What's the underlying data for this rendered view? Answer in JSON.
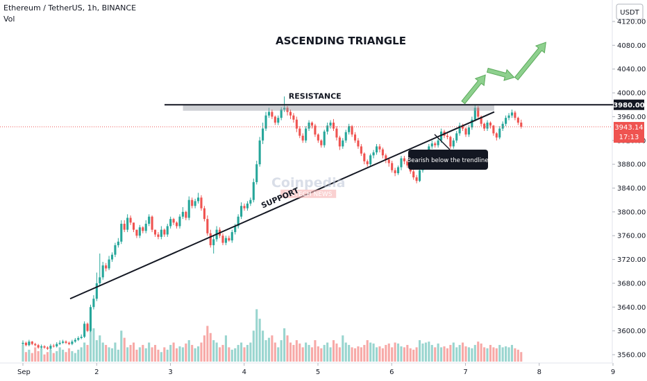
{
  "header": {
    "symbol_line": "Ethereum / TetherUS, 1h, BINANCE",
    "vol_label": "Vol"
  },
  "axis": {
    "currency_badge": "USDT"
  },
  "chart_data": {
    "type": "candlestick",
    "title": "ASCENDING TRIANGLE",
    "ylim": [
      3555,
      4135
    ],
    "y_ticks": [
      3560,
      3600,
      3640,
      3680,
      3720,
      3760,
      3800,
      3840,
      3880,
      3920,
      3960,
      4000,
      4040,
      4080,
      4120
    ],
    "x_ticks": [
      "Sep",
      "2",
      "3",
      "4",
      "5",
      "6",
      "7",
      "8",
      "9"
    ],
    "x_day_range": [
      1.0,
      9.0
    ],
    "price_badges": {
      "resistance_level": "3980.00",
      "last_price": "3943.14",
      "countdown": "17:13"
    },
    "annotations": {
      "resistance_label": "RESISTANCE",
      "support_label": "SUPPORT",
      "callout": "Bearish below the trendline",
      "watermark_main": "Coinpedia",
      "watermark_sub": "FINTECH NEWS"
    },
    "resistance": {
      "price": 3980,
      "x_start": 2.92,
      "x_end": 9.0
    },
    "resistance_zone": {
      "top": 3980,
      "bottom": 3970,
      "x_start": 3.17,
      "x_end": 7.39
    },
    "support_line": {
      "start": {
        "x": 1.64,
        "y": 3654
      },
      "end": {
        "x": 7.39,
        "y": 3968
      }
    },
    "projection_arrows": [
      {
        "from": {
          "x": 6.97,
          "y": 3984
        },
        "to": {
          "x": 7.27,
          "y": 4030
        }
      },
      {
        "from": {
          "x": 7.3,
          "y": 4038
        },
        "to": {
          "x": 7.66,
          "y": 4026
        }
      },
      {
        "from": {
          "x": 7.69,
          "y": 4024
        },
        "to": {
          "x": 8.09,
          "y": 4085
        }
      }
    ],
    "candle_colors": {
      "up": "#26a69a",
      "down": "#ef5350",
      "vol_up": "#99d5cf",
      "vol_down": "#f7a9a7"
    },
    "candles": {
      "start_x": 1.0,
      "step": 0.0417,
      "vol_scale": [
        0,
        160
      ],
      "open": [
        3578,
        3580,
        3576,
        3582,
        3578,
        3576,
        3572,
        3574,
        3572,
        3570,
        3575,
        3574,
        3578,
        3580,
        3582,
        3580,
        3578,
        3582,
        3585,
        3588,
        3590,
        3612,
        3600,
        3640,
        3654,
        3680,
        3690,
        3710,
        3705,
        3720,
        3728,
        3744,
        3750,
        3780,
        3770,
        3790,
        3782,
        3770,
        3760,
        3774,
        3768,
        3780,
        3792,
        3770,
        3762,
        3758,
        3770,
        3762,
        3776,
        3788,
        3782,
        3776,
        3792,
        3800,
        3790,
        3820,
        3810,
        3818,
        3824,
        3806,
        3788,
        3764,
        3744,
        3754,
        3770,
        3760,
        3748,
        3756,
        3752,
        3766,
        3776,
        3792,
        3810,
        3806,
        3814,
        3820,
        3850,
        3880,
        3920,
        3940,
        3962,
        3968,
        3960,
        3950,
        3958,
        3972,
        3975,
        3968,
        3962,
        3955,
        3940,
        3928,
        3920,
        3940,
        3950,
        3945,
        3930,
        3920,
        3912,
        3935,
        3945,
        3950,
        3940,
        3925,
        3910,
        3920,
        3934,
        3944,
        3930,
        3920,
        3910,
        3898,
        3885,
        3880,
        3895,
        3900,
        3910,
        3905,
        3895,
        3888,
        3882,
        3870,
        3865,
        3875,
        3890,
        3885,
        3878,
        3868,
        3858,
        3852,
        3870,
        3882,
        3895,
        3910,
        3915,
        3912,
        3920,
        3935,
        3928,
        3926,
        3910,
        3920,
        3932,
        3945,
        3940,
        3930,
        3942,
        3955,
        3975,
        3960,
        3948,
        3940,
        3950,
        3945,
        3932,
        3925,
        3940,
        3948,
        3958,
        3962,
        3967,
        3958,
        3950
      ],
      "close": [
        3580,
        3576,
        3582,
        3578,
        3576,
        3572,
        3574,
        3572,
        3570,
        3575,
        3574,
        3578,
        3580,
        3582,
        3580,
        3578,
        3582,
        3585,
        3588,
        3590,
        3612,
        3600,
        3640,
        3654,
        3680,
        3690,
        3710,
        3705,
        3720,
        3728,
        3744,
        3750,
        3780,
        3770,
        3790,
        3782,
        3770,
        3760,
        3774,
        3768,
        3780,
        3792,
        3770,
        3762,
        3758,
        3770,
        3762,
        3776,
        3788,
        3782,
        3776,
        3792,
        3800,
        3790,
        3820,
        3810,
        3818,
        3824,
        3806,
        3788,
        3764,
        3744,
        3754,
        3770,
        3760,
        3748,
        3756,
        3752,
        3766,
        3776,
        3792,
        3810,
        3806,
        3814,
        3820,
        3850,
        3880,
        3920,
        3940,
        3962,
        3968,
        3960,
        3950,
        3958,
        3972,
        3975,
        3968,
        3962,
        3955,
        3940,
        3928,
        3920,
        3940,
        3950,
        3945,
        3930,
        3920,
        3912,
        3935,
        3945,
        3950,
        3940,
        3925,
        3910,
        3920,
        3934,
        3944,
        3930,
        3920,
        3910,
        3898,
        3885,
        3880,
        3895,
        3900,
        3910,
        3905,
        3895,
        3888,
        3882,
        3870,
        3865,
        3875,
        3890,
        3885,
        3878,
        3868,
        3858,
        3852,
        3870,
        3882,
        3895,
        3910,
        3915,
        3912,
        3920,
        3935,
        3928,
        3926,
        3910,
        3920,
        3932,
        3945,
        3940,
        3930,
        3942,
        3955,
        3975,
        3960,
        3948,
        3940,
        3950,
        3945,
        3932,
        3925,
        3940,
        3948,
        3958,
        3962,
        3967,
        3958,
        3950,
        3943
      ],
      "high": [
        3584,
        3582,
        3585,
        3583,
        3580,
        3578,
        3577,
        3576,
        3574,
        3578,
        3578,
        3581,
        3584,
        3585,
        3584,
        3582,
        3585,
        3588,
        3591,
        3594,
        3616,
        3614,
        3644,
        3660,
        3698,
        3730,
        3716,
        3714,
        3726,
        3732,
        3748,
        3756,
        3786,
        3786,
        3796,
        3794,
        3778,
        3770,
        3778,
        3776,
        3786,
        3796,
        3794,
        3770,
        3766,
        3776,
        3772,
        3780,
        3792,
        3790,
        3784,
        3796,
        3808,
        3802,
        3826,
        3824,
        3822,
        3832,
        3828,
        3810,
        3794,
        3770,
        3760,
        3776,
        3774,
        3764,
        3760,
        3760,
        3770,
        3780,
        3796,
        3816,
        3814,
        3818,
        3824,
        3856,
        3886,
        3926,
        3950,
        3968,
        3975,
        3972,
        3962,
        3962,
        3976,
        3994,
        3978,
        3972,
        3966,
        3960,
        3944,
        3932,
        3944,
        3954,
        3952,
        3948,
        3932,
        3922,
        3938,
        3950,
        3954,
        3956,
        3944,
        3928,
        3924,
        3938,
        3948,
        3946,
        3934,
        3924,
        3914,
        3900,
        3888,
        3898,
        3904,
        3914,
        3914,
        3908,
        3898,
        3890,
        3886,
        3874,
        3878,
        3894,
        3894,
        3888,
        3880,
        3872,
        3862,
        3874,
        3886,
        3898,
        3914,
        3920,
        3918,
        3924,
        3940,
        3938,
        3932,
        3928,
        3924,
        3936,
        3950,
        3948,
        3942,
        3946,
        3960,
        3980,
        3978,
        3962,
        3950,
        3954,
        3952,
        3946,
        3934,
        3944,
        3952,
        3962,
        3966,
        3972,
        3970,
        3960,
        3955
      ],
      "low": [
        3576,
        3574,
        3574,
        3576,
        3574,
        3570,
        3570,
        3570,
        3568,
        3568,
        3572,
        3572,
        3576,
        3578,
        3578,
        3576,
        3576,
        3580,
        3583,
        3586,
        3588,
        3598,
        3598,
        3636,
        3650,
        3676,
        3686,
        3700,
        3702,
        3716,
        3724,
        3740,
        3746,
        3766,
        3766,
        3778,
        3766,
        3756,
        3756,
        3764,
        3764,
        3776,
        3766,
        3758,
        3754,
        3754,
        3758,
        3758,
        3772,
        3778,
        3772,
        3772,
        3788,
        3786,
        3786,
        3806,
        3806,
        3814,
        3802,
        3784,
        3760,
        3740,
        3730,
        3750,
        3756,
        3744,
        3744,
        3750,
        3748,
        3762,
        3772,
        3788,
        3802,
        3802,
        3810,
        3816,
        3846,
        3876,
        3914,
        3936,
        3958,
        3956,
        3946,
        3946,
        3954,
        3968,
        3962,
        3956,
        3950,
        3934,
        3924,
        3916,
        3916,
        3936,
        3940,
        3926,
        3916,
        3908,
        3908,
        3930,
        3940,
        3936,
        3920,
        3904,
        3906,
        3916,
        3930,
        3926,
        3916,
        3906,
        3894,
        3880,
        3876,
        3876,
        3890,
        3896,
        3900,
        3890,
        3882,
        3876,
        3866,
        3860,
        3862,
        3870,
        3880,
        3874,
        3864,
        3854,
        3848,
        3850,
        3866,
        3878,
        3892,
        3906,
        3908,
        3908,
        3916,
        3924,
        3922,
        3906,
        3906,
        3916,
        3928,
        3936,
        3926,
        3926,
        3938,
        3952,
        3956,
        3944,
        3936,
        3936,
        3940,
        3928,
        3920,
        3922,
        3936,
        3944,
        3954,
        3958,
        3954,
        3946,
        3940
      ],
      "volume": [
        35,
        20,
        25,
        18,
        30,
        22,
        28,
        15,
        20,
        25,
        18,
        22,
        30,
        25,
        20,
        28,
        22,
        18,
        25,
        30,
        40,
        35,
        80,
        70,
        45,
        55,
        40,
        35,
        30,
        28,
        40,
        25,
        65,
        50,
        30,
        35,
        40,
        25,
        30,
        35,
        28,
        40,
        30,
        35,
        25,
        20,
        30,
        25,
        35,
        40,
        28,
        32,
        30,
        38,
        45,
        35,
        28,
        32,
        40,
        55,
        75,
        60,
        45,
        40,
        30,
        35,
        55,
        30,
        25,
        28,
        35,
        40,
        30,
        35,
        40,
        65,
        110,
        90,
        65,
        45,
        50,
        55,
        40,
        30,
        45,
        70,
        55,
        40,
        35,
        45,
        38,
        30,
        40,
        35,
        30,
        45,
        32,
        28,
        35,
        40,
        30,
        45,
        38,
        30,
        55,
        40,
        35,
        30,
        28,
        32,
        30,
        35,
        45,
        40,
        38,
        30,
        32,
        28,
        35,
        38,
        30,
        40,
        38,
        32,
        30,
        35,
        28,
        25,
        30,
        45,
        38,
        40,
        42,
        35,
        30,
        38,
        30,
        32,
        28,
        35,
        40,
        30,
        35,
        40,
        32,
        30,
        28,
        35,
        42,
        38,
        30,
        28,
        35,
        30,
        28,
        35,
        30,
        32,
        30,
        35,
        28,
        25,
        20
      ]
    }
  }
}
